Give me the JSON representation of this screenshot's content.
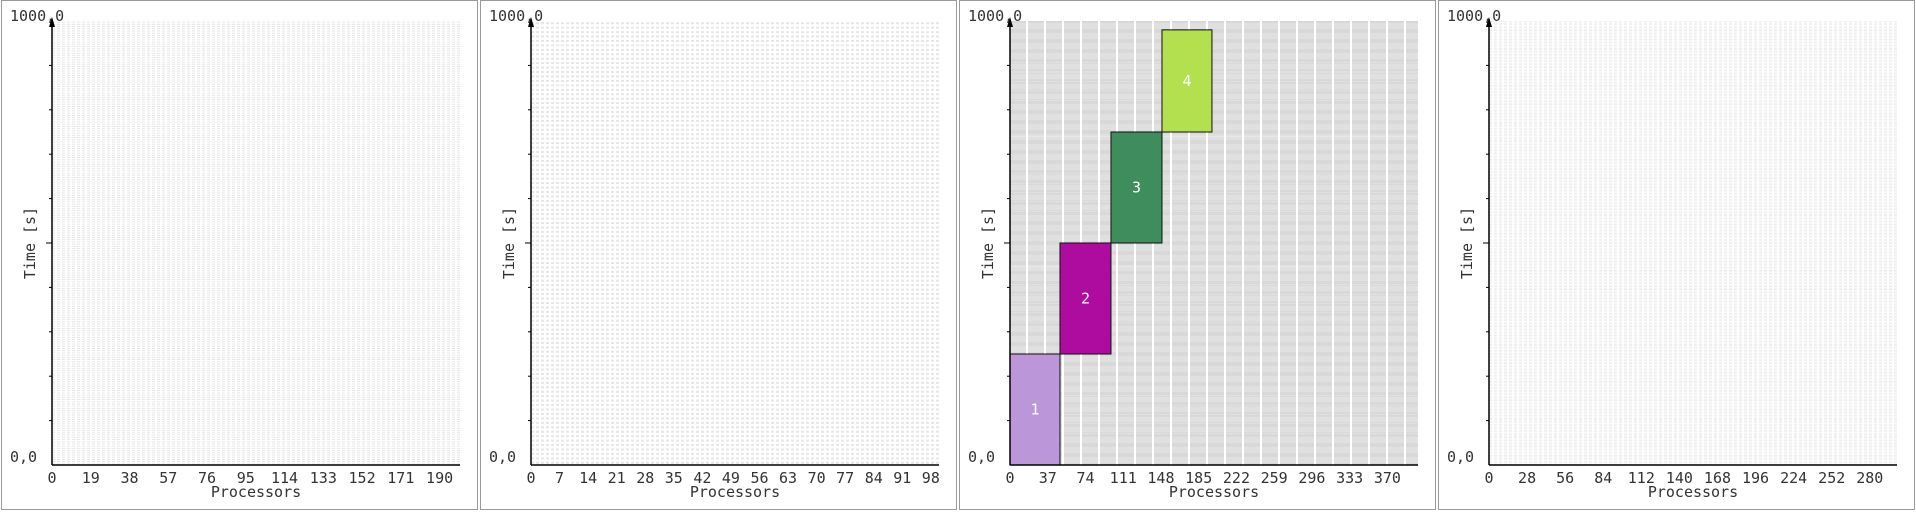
{
  "chart_data": [
    {
      "type": "gantt",
      "title": "",
      "xlabel": "Processors",
      "ylabel": "Time [s]",
      "y_top_label": "1000,0",
      "y_bottom_label": "0,0",
      "ylim": [
        0,
        1000
      ],
      "xlim": [
        0,
        200
      ],
      "x_ticks": [
        "0",
        "19",
        "38",
        "57",
        "76",
        "95",
        "114",
        "133",
        "152",
        "171",
        "190"
      ],
      "processor_rows": 200,
      "row_color": "#e6e6e6",
      "jobs": []
    },
    {
      "type": "gantt",
      "title": "",
      "xlabel": "Processors",
      "ylabel": "Time [s]",
      "y_top_label": "1000,0",
      "y_bottom_label": "0,0",
      "ylim": [
        0,
        1000
      ],
      "xlim": [
        0,
        100
      ],
      "x_ticks": [
        "0",
        "7",
        "14",
        "21",
        "28",
        "35",
        "42",
        "49",
        "56",
        "63",
        "70",
        "77",
        "84",
        "91",
        "98"
      ],
      "processor_rows": 100,
      "row_color": "#e6e6e6",
      "jobs": []
    },
    {
      "type": "gantt",
      "title": "",
      "xlabel": "Processors",
      "ylabel": "Time [s]",
      "y_top_label": "1000,0",
      "y_bottom_label": "0,0",
      "ylim": [
        0,
        1000
      ],
      "xlim": [
        0,
        400
      ],
      "x_ticks": [
        "0",
        "37",
        "74",
        "111",
        "148",
        "185",
        "222",
        "259",
        "296",
        "333",
        "370"
      ],
      "processor_rows": 400,
      "row_color": "#c2c2c2",
      "jobs": [
        {
          "label": "1",
          "proc_start": 0,
          "proc_end": 49,
          "t_start": 0,
          "t_end": 250,
          "color": "#bb97d9"
        },
        {
          "label": "2",
          "proc_start": 49,
          "proc_end": 99,
          "t_start": 250,
          "t_end": 500,
          "color": "#ad0c9e"
        },
        {
          "label": "3",
          "proc_start": 99,
          "proc_end": 149,
          "t_start": 500,
          "t_end": 750,
          "color": "#3f8c5c"
        },
        {
          "label": "4",
          "proc_start": 149,
          "proc_end": 198,
          "t_start": 750,
          "t_end": 980,
          "color": "#b2e04e"
        }
      ]
    },
    {
      "type": "gantt",
      "title": "",
      "xlabel": "Processors",
      "ylabel": "Time [s]",
      "y_top_label": "1000,0",
      "y_bottom_label": "0,0",
      "ylim": [
        0,
        1000
      ],
      "xlim": [
        0,
        300
      ],
      "x_ticks": [
        "0",
        "28",
        "56",
        "84",
        "112",
        "140",
        "168",
        "196",
        "224",
        "252",
        "280"
      ],
      "processor_rows": 300,
      "row_color": "#e6e6e6",
      "jobs": []
    }
  ]
}
